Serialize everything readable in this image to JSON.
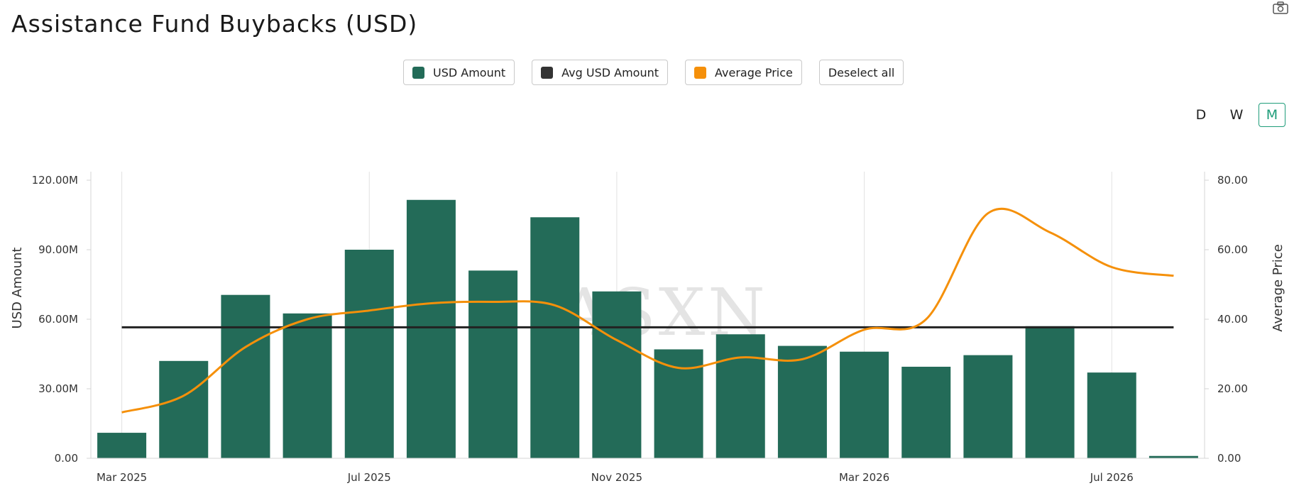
{
  "title": "Assistance Fund Buybacks (USD)",
  "watermark": "ASXN",
  "legend": [
    {
      "label": "USD Amount",
      "color": "#236b58"
    },
    {
      "label": "Avg USD Amount",
      "color": "#333333"
    },
    {
      "label": "Average Price",
      "color": "#f5900a"
    }
  ],
  "deselect_label": "Deselect all",
  "period_options": [
    "D",
    "W",
    "M"
  ],
  "period_selected": "M",
  "chart_data": {
    "type": "bar",
    "categories": [
      "2025-03",
      "2025-04",
      "2025-05",
      "2025-06",
      "2025-07",
      "2025-08",
      "2025-09",
      "2025-10",
      "2025-11",
      "2025-12",
      "2026-01",
      "2026-02",
      "2026-03",
      "2026-04",
      "2026-05",
      "2026-06",
      "2026-07",
      "2026-08"
    ],
    "x_tick_labels": [
      {
        "category": "2025-03",
        "label": "Mar 2025"
      },
      {
        "category": "2025-07",
        "label": "Jul 2025"
      },
      {
        "category": "2025-11",
        "label": "Nov 2025"
      },
      {
        "category": "2026-03",
        "label": "Mar 2026"
      },
      {
        "category": "2026-07",
        "label": "Jul 2026"
      }
    ],
    "series": [
      {
        "name": "USD Amount",
        "type": "bar",
        "axis": "left",
        "color": "#236b58",
        "values": [
          11.0,
          42.0,
          70.5,
          62.5,
          90.0,
          111.5,
          81.0,
          104.0,
          72.0,
          47.0,
          53.5,
          48.5,
          46.0,
          39.5,
          44.5,
          57.0,
          37.0,
          1.0
        ]
      },
      {
        "name": "Avg USD Amount",
        "type": "line",
        "axis": "left",
        "color": "#222222",
        "values": [
          56.5,
          56.5,
          56.5,
          56.5,
          56.5,
          56.5,
          56.5,
          56.5,
          56.5,
          56.5,
          56.5,
          56.5,
          56.5,
          56.5,
          56.5,
          56.5,
          56.5,
          56.5
        ]
      },
      {
        "name": "Average Price",
        "type": "line",
        "axis": "right",
        "color": "#f5900a",
        "values": [
          13.2,
          18.0,
          32.0,
          40.0,
          42.5,
          44.6,
          45.0,
          44.0,
          34.0,
          26.0,
          29.0,
          28.5,
          37.0,
          40.0,
          70.5,
          65.0,
          55.0,
          52.5
        ]
      }
    ],
    "y_left": {
      "label": "USD Amount",
      "min": 0,
      "max": 120,
      "ticks": [
        "0.00",
        "30.00M",
        "60.00M",
        "90.00M",
        "120.00M"
      ],
      "tick_values": [
        0,
        30,
        60,
        90,
        120
      ]
    },
    "y_right": {
      "label": "Average Price",
      "min": 0,
      "max": 80,
      "ticks": [
        "0.00",
        "20.00",
        "40.00",
        "60.00",
        "80.00"
      ],
      "tick_values": [
        0,
        20,
        40,
        60,
        80
      ]
    },
    "grid": "vertical"
  }
}
